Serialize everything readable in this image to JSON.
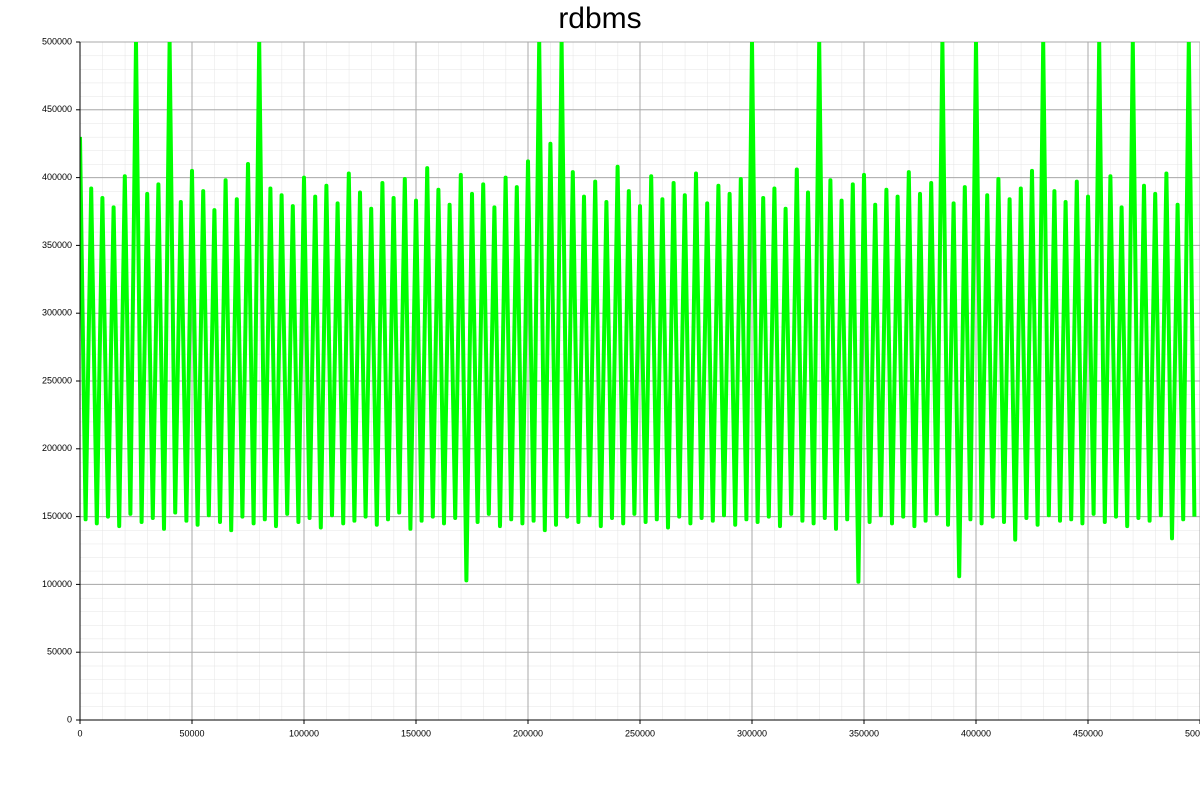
{
  "chart_data": {
    "type": "line",
    "title": "rdbms",
    "color": "#00ff00",
    "xlim": [
      0,
      500000
    ],
    "ylim": [
      0,
      500000
    ],
    "xticks": [
      0,
      50000,
      100000,
      150000,
      200000,
      250000,
      300000,
      350000,
      400000,
      450000,
      500000
    ],
    "yticks": [
      0,
      50000,
      100000,
      150000,
      200000,
      250000,
      300000,
      350000,
      400000,
      450000,
      500000
    ],
    "grid": true,
    "x": [
      0,
      2500,
      5000,
      7500,
      10000,
      12500,
      15000,
      17500,
      20000,
      22500,
      25000,
      27500,
      30000,
      32500,
      35000,
      37500,
      40000,
      42500,
      45000,
      47500,
      50000,
      52500,
      55000,
      57500,
      60000,
      62500,
      65000,
      67500,
      70000,
      72500,
      75000,
      77500,
      80000,
      82500,
      85000,
      87500,
      90000,
      92500,
      95000,
      97500,
      100000,
      102500,
      105000,
      107500,
      110000,
      112500,
      115000,
      117500,
      120000,
      122500,
      125000,
      127500,
      130000,
      132500,
      135000,
      137500,
      140000,
      142500,
      145000,
      147500,
      150000,
      152500,
      155000,
      157500,
      160000,
      162500,
      165000,
      167500,
      170000,
      172500,
      175000,
      177500,
      180000,
      182500,
      185000,
      187500,
      190000,
      192500,
      195000,
      197500,
      200000,
      202500,
      205000,
      207500,
      210000,
      212500,
      215000,
      217500,
      220000,
      222500,
      225000,
      227500,
      230000,
      232500,
      235000,
      237500,
      240000,
      242500,
      245000,
      247500,
      250000,
      252500,
      255000,
      257500,
      260000,
      262500,
      265000,
      267500,
      270000,
      272500,
      275000,
      277500,
      280000,
      282500,
      285000,
      287500,
      290000,
      292500,
      295000,
      297500,
      300000,
      302500,
      305000,
      307500,
      310000,
      312500,
      315000,
      317500,
      320000,
      322500,
      325000,
      327500,
      330000,
      332500,
      335000,
      337500,
      340000,
      342500,
      345000,
      347500,
      350000,
      352500,
      355000,
      357500,
      360000,
      362500,
      365000,
      367500,
      370000,
      372500,
      375000,
      377500,
      380000,
      382500,
      385000,
      387500,
      390000,
      392500,
      395000,
      397500,
      400000,
      402500,
      405000,
      407500,
      410000,
      412500,
      415000,
      417500,
      420000,
      422500,
      425000,
      427500,
      430000,
      432500,
      435000,
      437500,
      440000,
      442500,
      445000,
      447500,
      450000,
      452500,
      455000,
      457500,
      460000,
      462500,
      465000,
      467500,
      470000,
      472500,
      475000,
      477500,
      480000,
      482500,
      485000,
      487500,
      490000,
      492500,
      495000,
      497500
    ],
    "values": [
      430000,
      148000,
      392000,
      145000,
      385000,
      150000,
      378000,
      143000,
      401000,
      152000,
      500000,
      146000,
      388000,
      149000,
      395000,
      141000,
      500000,
      153000,
      382000,
      147000,
      405000,
      144000,
      390000,
      151000,
      376000,
      146000,
      398000,
      140000,
      384000,
      150000,
      410000,
      145000,
      500000,
      148000,
      392000,
      143000,
      387000,
      152000,
      379000,
      146000,
      400000,
      149000,
      386000,
      142000,
      394000,
      151000,
      381000,
      145000,
      403000,
      147000,
      389000,
      150000,
      377000,
      144000,
      396000,
      148000,
      385000,
      153000,
      399000,
      141000,
      383000,
      147000,
      407000,
      150000,
      391000,
      145000,
      380000,
      149000,
      402000,
      103000,
      388000,
      146000,
      395000,
      152000,
      378000,
      143000,
      400000,
      148000,
      393000,
      145000,
      412000,
      147000,
      500000,
      140000,
      425000,
      144000,
      500000,
      150000,
      404000,
      146000,
      386000,
      151000,
      397000,
      143000,
      382000,
      149000,
      408000,
      145000,
      390000,
      152000,
      379000,
      146000,
      401000,
      148000,
      384000,
      142000,
      396000,
      150000,
      387000,
      145000,
      403000,
      149000,
      381000,
      147000,
      394000,
      151000,
      388000,
      144000,
      399000,
      148000,
      500000,
      146000,
      385000,
      150000,
      392000,
      143000,
      377000,
      152000,
      406000,
      147000,
      389000,
      145000,
      500000,
      149000,
      398000,
      141000,
      383000,
      148000,
      395000,
      102000,
      402000,
      146000,
      380000,
      151000,
      391000,
      145000,
      386000,
      150000,
      404000,
      143000,
      388000,
      147000,
      396000,
      152000,
      500000,
      144000,
      381000,
      106000,
      393000,
      148000,
      500000,
      145000,
      387000,
      150000,
      399000,
      146000,
      384000,
      133000,
      392000,
      149000,
      405000,
      144000,
      500000,
      151000,
      390000,
      147000,
      382000,
      148000,
      397000,
      145000,
      386000,
      152000,
      500000,
      146000,
      401000,
      150000,
      378000,
      143000,
      500000,
      149000,
      394000,
      147000,
      388000,
      151000,
      403000,
      134000,
      380000,
      148000,
      500000,
      150000
    ]
  }
}
